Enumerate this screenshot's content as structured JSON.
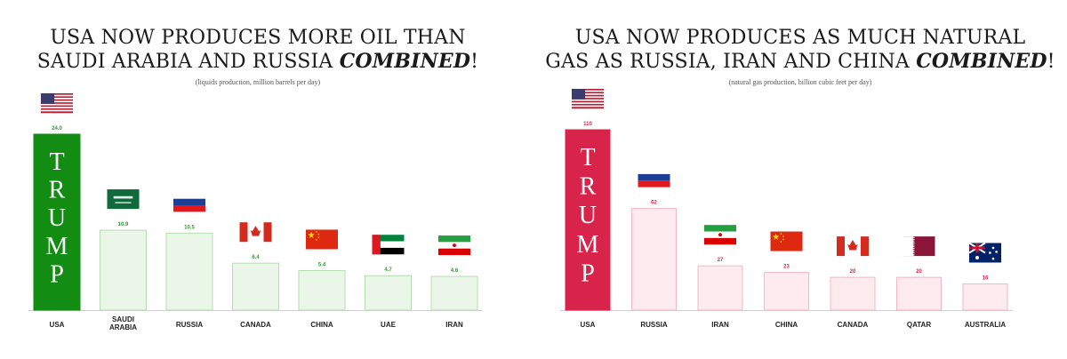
{
  "left_chart": {
    "title_line1": "USA NOW PRODUCES MORE OIL THAN",
    "title_line2_prefix": "SAUDI ARABIA AND RUSSIA ",
    "title_emphasis": "COMBINED",
    "title_suffix": "!",
    "subtitle": "(liquids production, million barrels per day)",
    "highlight_text": "TRUMP",
    "colors": {
      "highlight": "#138c13",
      "bar_fill": "#eaf7e8",
      "bar_stroke": "#b6ddb1",
      "label": "#2f9a2f"
    }
  },
  "right_chart": {
    "title_line1": "USA NOW PRODUCES AS MUCH NATURAL",
    "title_line2_prefix": "GAS AS RUSSIA, IRAN AND CHINA ",
    "title_emphasis": "COMBINED",
    "title_suffix": "!",
    "subtitle": "(natural gas production, billion cubic feet per day)",
    "highlight_text": "TRUMP",
    "colors": {
      "highlight": "#d8244a",
      "bar_fill": "#fdebef",
      "bar_stroke": "#f2b8c5",
      "label": "#d8244a"
    }
  },
  "chart_data": [
    {
      "type": "bar",
      "title": "USA NOW PRODUCES MORE OIL THAN SAUDI ARABIA AND RUSSIA COMBINED!",
      "subtitle": "(liquids production, million barrels per day)",
      "categories": [
        "USA",
        "SAUDI ARABIA",
        "RUSSIA",
        "CANADA",
        "CHINA",
        "UAE",
        "IRAN"
      ],
      "values": [
        24.0,
        10.9,
        10.5,
        6.4,
        5.4,
        4.7,
        4.6
      ],
      "value_labels": [
        "24.0",
        "10.9",
        "10.5",
        "6.4",
        "5.4",
        "4.7",
        "4.6"
      ],
      "flags": [
        "usa-flag",
        "saudi-arabia-flag",
        "russia-flag",
        "canada-flag",
        "china-flag",
        "uae-flag",
        "iran-flag"
      ],
      "ylim": [
        0,
        24.0
      ],
      "grid": false
    },
    {
      "type": "bar",
      "title": "USA NOW PRODUCES AS MUCH NATURAL GAS AS RUSSIA, IRAN AND CHINA COMBINED!",
      "subtitle": "(natural gas production, billion cubic feet per day)",
      "categories": [
        "USA",
        "RUSSIA",
        "IRAN",
        "CHINA",
        "CANADA",
        "QATAR",
        "AUSTRALIA"
      ],
      "values": [
        110,
        62,
        27,
        23,
        20,
        20,
        16
      ],
      "value_labels": [
        "110",
        "62",
        "27",
        "23",
        "20",
        "20",
        "16"
      ],
      "flags": [
        "usa-flag",
        "russia-flag",
        "iran-flag",
        "china-flag",
        "canada-flag",
        "qatar-flag",
        "australia-flag"
      ],
      "ylim": [
        0,
        110
      ],
      "grid": false
    }
  ]
}
